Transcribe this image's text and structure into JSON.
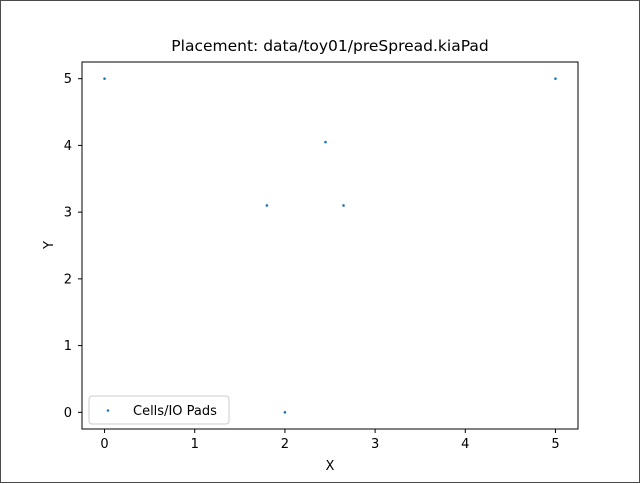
{
  "chart_data": {
    "type": "scatter",
    "title": "Placement: data/toy01/preSpread.kiaPad",
    "xlabel": "X",
    "ylabel": "Y",
    "xlim": [
      -0.25,
      5.25
    ],
    "ylim": [
      -0.25,
      5.25
    ],
    "xticks": [
      0,
      1,
      2,
      3,
      4,
      5
    ],
    "yticks": [
      0,
      1,
      2,
      3,
      4,
      5
    ],
    "grid": false,
    "legend_position": "lower-left",
    "series": [
      {
        "name": "Cells/IO Pads",
        "color": "#1f77b4",
        "x": [
          0,
          5,
          2.45,
          1.8,
          2.65,
          2
        ],
        "y": [
          5,
          5,
          4.05,
          3.1,
          3.1,
          0
        ]
      }
    ]
  }
}
